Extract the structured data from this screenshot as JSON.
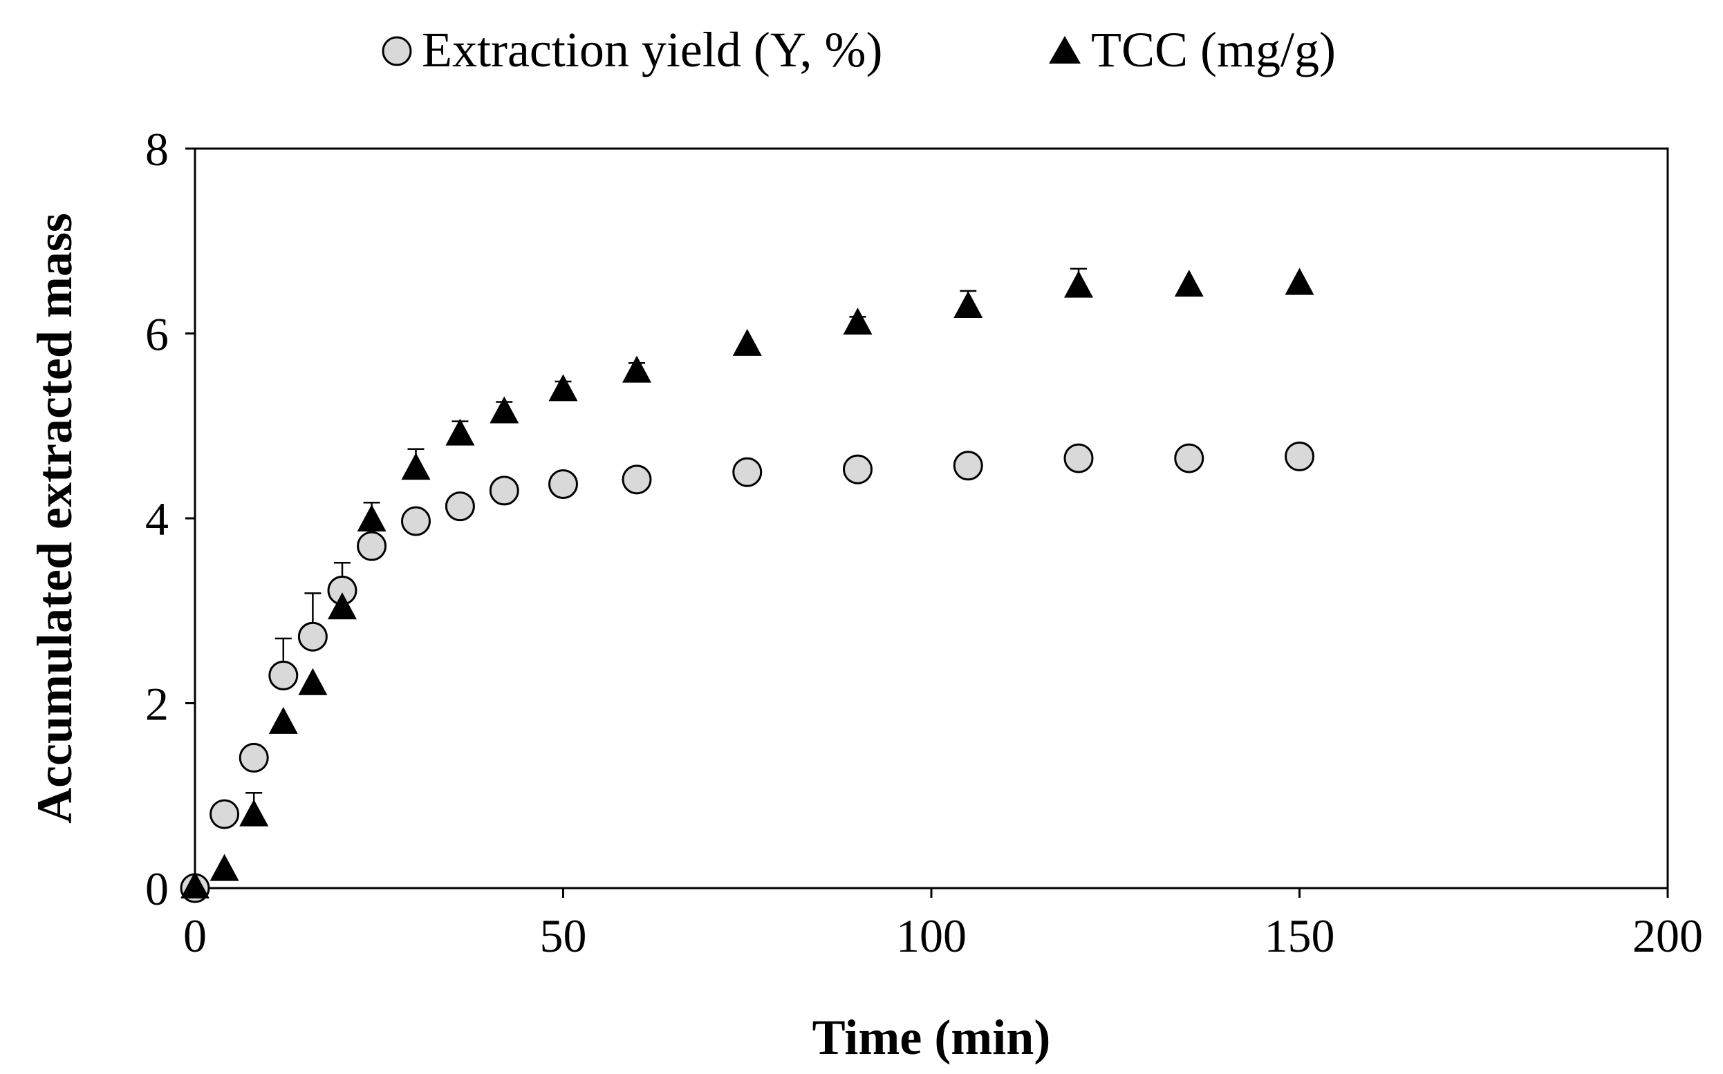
{
  "chart_data": {
    "type": "scatter",
    "title": "",
    "xlabel": "Time (min)",
    "ylabel": "Accumulated extracted mass",
    "xlim": [
      0,
      200
    ],
    "ylim": [
      0,
      8
    ],
    "xticks": [
      0,
      50,
      100,
      150,
      200
    ],
    "yticks": [
      0,
      2,
      4,
      6,
      8
    ],
    "xtick_labels": [
      "0",
      "50",
      "100",
      "150",
      "200"
    ],
    "ytick_labels": [
      "0",
      "2",
      "4",
      "6",
      "8"
    ],
    "grid": false,
    "legend_position": "top-center",
    "series": [
      {
        "name": "Extraction yield (Y, %)",
        "marker": "circle",
        "color": "#d9d9d9",
        "x": [
          0,
          4,
          8,
          12,
          16,
          20,
          24,
          30,
          36,
          42,
          50,
          60,
          75,
          90,
          105,
          120,
          135,
          150
        ],
        "y": [
          0.0,
          0.8,
          1.41,
          2.3,
          2.72,
          3.22,
          3.7,
          3.97,
          4.13,
          4.3,
          4.37,
          4.42,
          4.5,
          4.53,
          4.57,
          4.65,
          4.65,
          4.67
        ],
        "error": [
          0,
          0.1,
          0,
          0.4,
          0.47,
          0.3,
          0,
          0,
          0,
          0,
          0,
          0,
          0,
          0,
          0,
          0,
          0,
          0
        ]
      },
      {
        "name": "TCC (mg/g)",
        "marker": "triangle",
        "color": "#000000",
        "x": [
          0,
          4,
          8,
          12,
          16,
          20,
          24,
          30,
          36,
          42,
          50,
          60,
          75,
          90,
          105,
          120,
          135,
          150
        ],
        "y": [
          0.0,
          0.19,
          0.78,
          1.78,
          2.2,
          3.02,
          3.97,
          4.53,
          4.9,
          5.14,
          5.38,
          5.58,
          5.87,
          6.1,
          6.28,
          6.5,
          6.51,
          6.53
        ],
        "error": [
          0,
          0,
          0.25,
          0,
          0,
          0,
          0.2,
          0.22,
          0.15,
          0.12,
          0.1,
          0.1,
          0,
          0.08,
          0.18,
          0.2,
          0,
          0
        ]
      }
    ]
  }
}
